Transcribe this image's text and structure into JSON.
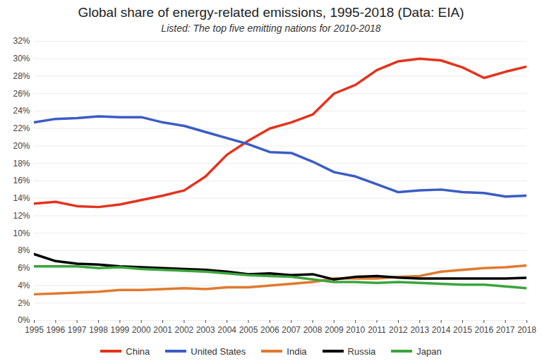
{
  "chart_data": {
    "type": "line",
    "title": "Global share of energy-related emissions, 1995-2018 (Data: EIA)",
    "subtitle": "Listed: The top five emitting nations for 2010-2018",
    "x": [
      1995,
      1996,
      1997,
      1998,
      1999,
      2000,
      2001,
      2002,
      2003,
      2004,
      2005,
      2006,
      2007,
      2008,
      2009,
      2010,
      2011,
      2012,
      2013,
      2014,
      2015,
      2016,
      2017,
      2018
    ],
    "xlim": [
      1995,
      2018
    ],
    "xticks": [
      1995,
      1996,
      1997,
      1998,
      1999,
      2000,
      2001,
      2002,
      2003,
      2004,
      2005,
      2006,
      2007,
      2008,
      2009,
      2010,
      2011,
      2012,
      2013,
      2014,
      2015,
      2016,
      2017,
      2018
    ],
    "ylim": [
      0,
      32
    ],
    "yticks": [
      {
        "value": 0,
        "label": "0%"
      },
      {
        "value": 2,
        "label": "2%"
      },
      {
        "value": 4,
        "label": "4%"
      },
      {
        "value": 6,
        "label": "6%"
      },
      {
        "value": 8,
        "label": "8%"
      },
      {
        "value": 10,
        "label": "10%"
      },
      {
        "value": 12,
        "label": "12%"
      },
      {
        "value": 14,
        "label": "14%"
      },
      {
        "value": 16,
        "label": "16%"
      },
      {
        "value": 18,
        "label": "18%"
      },
      {
        "value": 20,
        "label": "20%"
      },
      {
        "value": 22,
        "label": "22%"
      },
      {
        "value": 24,
        "label": "24%"
      },
      {
        "value": 26,
        "label": "26%"
      },
      {
        "value": 28,
        "label": "28%"
      },
      {
        "value": 30,
        "label": "30%"
      },
      {
        "value": 32,
        "label": "32%"
      }
    ],
    "grid": true,
    "legend": "bottom",
    "series": [
      {
        "name": "China",
        "color": "#e5321c",
        "values": [
          13.4,
          13.6,
          13.1,
          13.0,
          13.3,
          13.8,
          14.3,
          14.9,
          16.5,
          19.0,
          20.6,
          22.0,
          22.7,
          23.6,
          26.0,
          27.0,
          28.7,
          29.7,
          30.0,
          29.8,
          29.0,
          27.8,
          28.5,
          29.1
        ]
      },
      {
        "name": "United States",
        "color": "#3a5cc5",
        "values": [
          22.7,
          23.1,
          23.2,
          23.4,
          23.3,
          23.3,
          22.7,
          22.3,
          21.6,
          20.9,
          20.2,
          19.3,
          19.2,
          18.2,
          17.0,
          16.5,
          15.6,
          14.7,
          14.9,
          15.0,
          14.7,
          14.6,
          14.2,
          14.3
        ]
      },
      {
        "name": "India",
        "color": "#e07a2e",
        "values": [
          3.0,
          3.1,
          3.2,
          3.3,
          3.5,
          3.5,
          3.6,
          3.7,
          3.6,
          3.8,
          3.8,
          4.0,
          4.2,
          4.4,
          4.8,
          4.8,
          4.8,
          5.0,
          5.1,
          5.6,
          5.8,
          6.0,
          6.1,
          6.3
        ]
      },
      {
        "name": "Russia",
        "color": "#000000",
        "values": [
          7.6,
          6.8,
          6.5,
          6.4,
          6.2,
          6.1,
          6.0,
          5.9,
          5.8,
          5.6,
          5.3,
          5.4,
          5.2,
          5.3,
          4.7,
          5.0,
          5.1,
          4.9,
          4.8,
          4.8,
          4.8,
          4.8,
          4.8,
          4.9
        ]
      },
      {
        "name": "Japan",
        "color": "#3aa63a",
        "values": [
          6.2,
          6.2,
          6.2,
          6.0,
          6.1,
          5.9,
          5.8,
          5.7,
          5.6,
          5.4,
          5.2,
          5.1,
          5.0,
          4.7,
          4.4,
          4.4,
          4.3,
          4.4,
          4.3,
          4.2,
          4.1,
          4.1,
          3.9,
          3.7
        ]
      }
    ]
  }
}
